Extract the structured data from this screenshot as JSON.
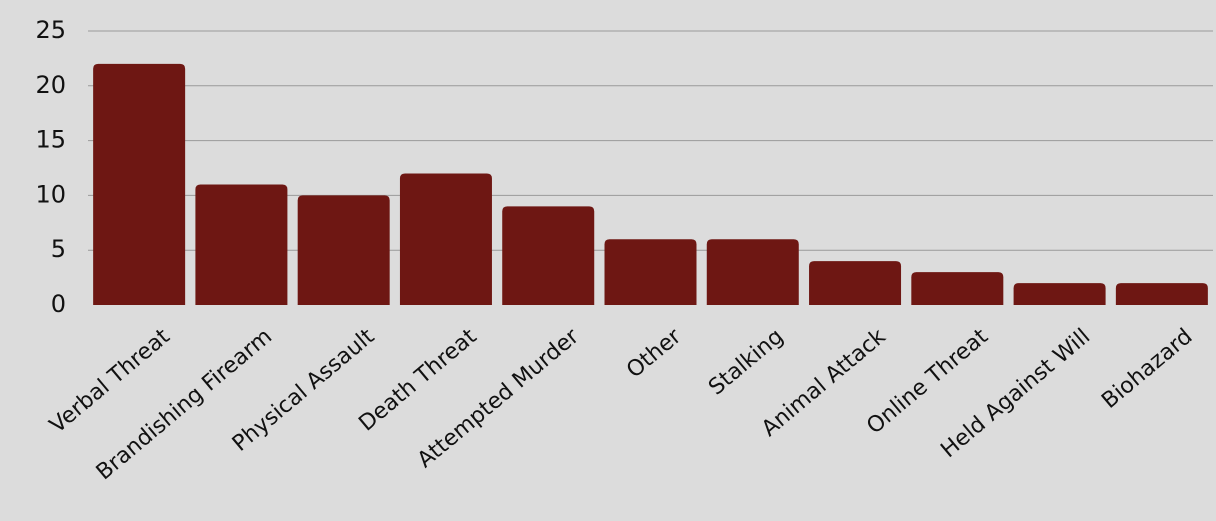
{
  "chart_data": {
    "type": "bar",
    "categories": [
      "Verbal Threat",
      "Brandishing Firearm",
      "Physical Assault",
      "Death Threat",
      "Attempted Murder",
      "Other",
      "Stalking",
      "Animal Attack",
      "Online Threat",
      "Held Against Will",
      "Biohazard"
    ],
    "values": [
      22,
      11,
      10,
      12,
      9,
      6,
      6,
      4,
      3,
      2,
      2
    ],
    "title": "",
    "xlabel": "",
    "ylabel": "",
    "ylim": [
      0,
      25
    ],
    "yticks": [
      "0",
      "5",
      "10",
      "15",
      "20",
      "25"
    ],
    "grid": true,
    "legend": "none",
    "bar_color": "#6e1713",
    "background_color": "#dcdcdc"
  }
}
